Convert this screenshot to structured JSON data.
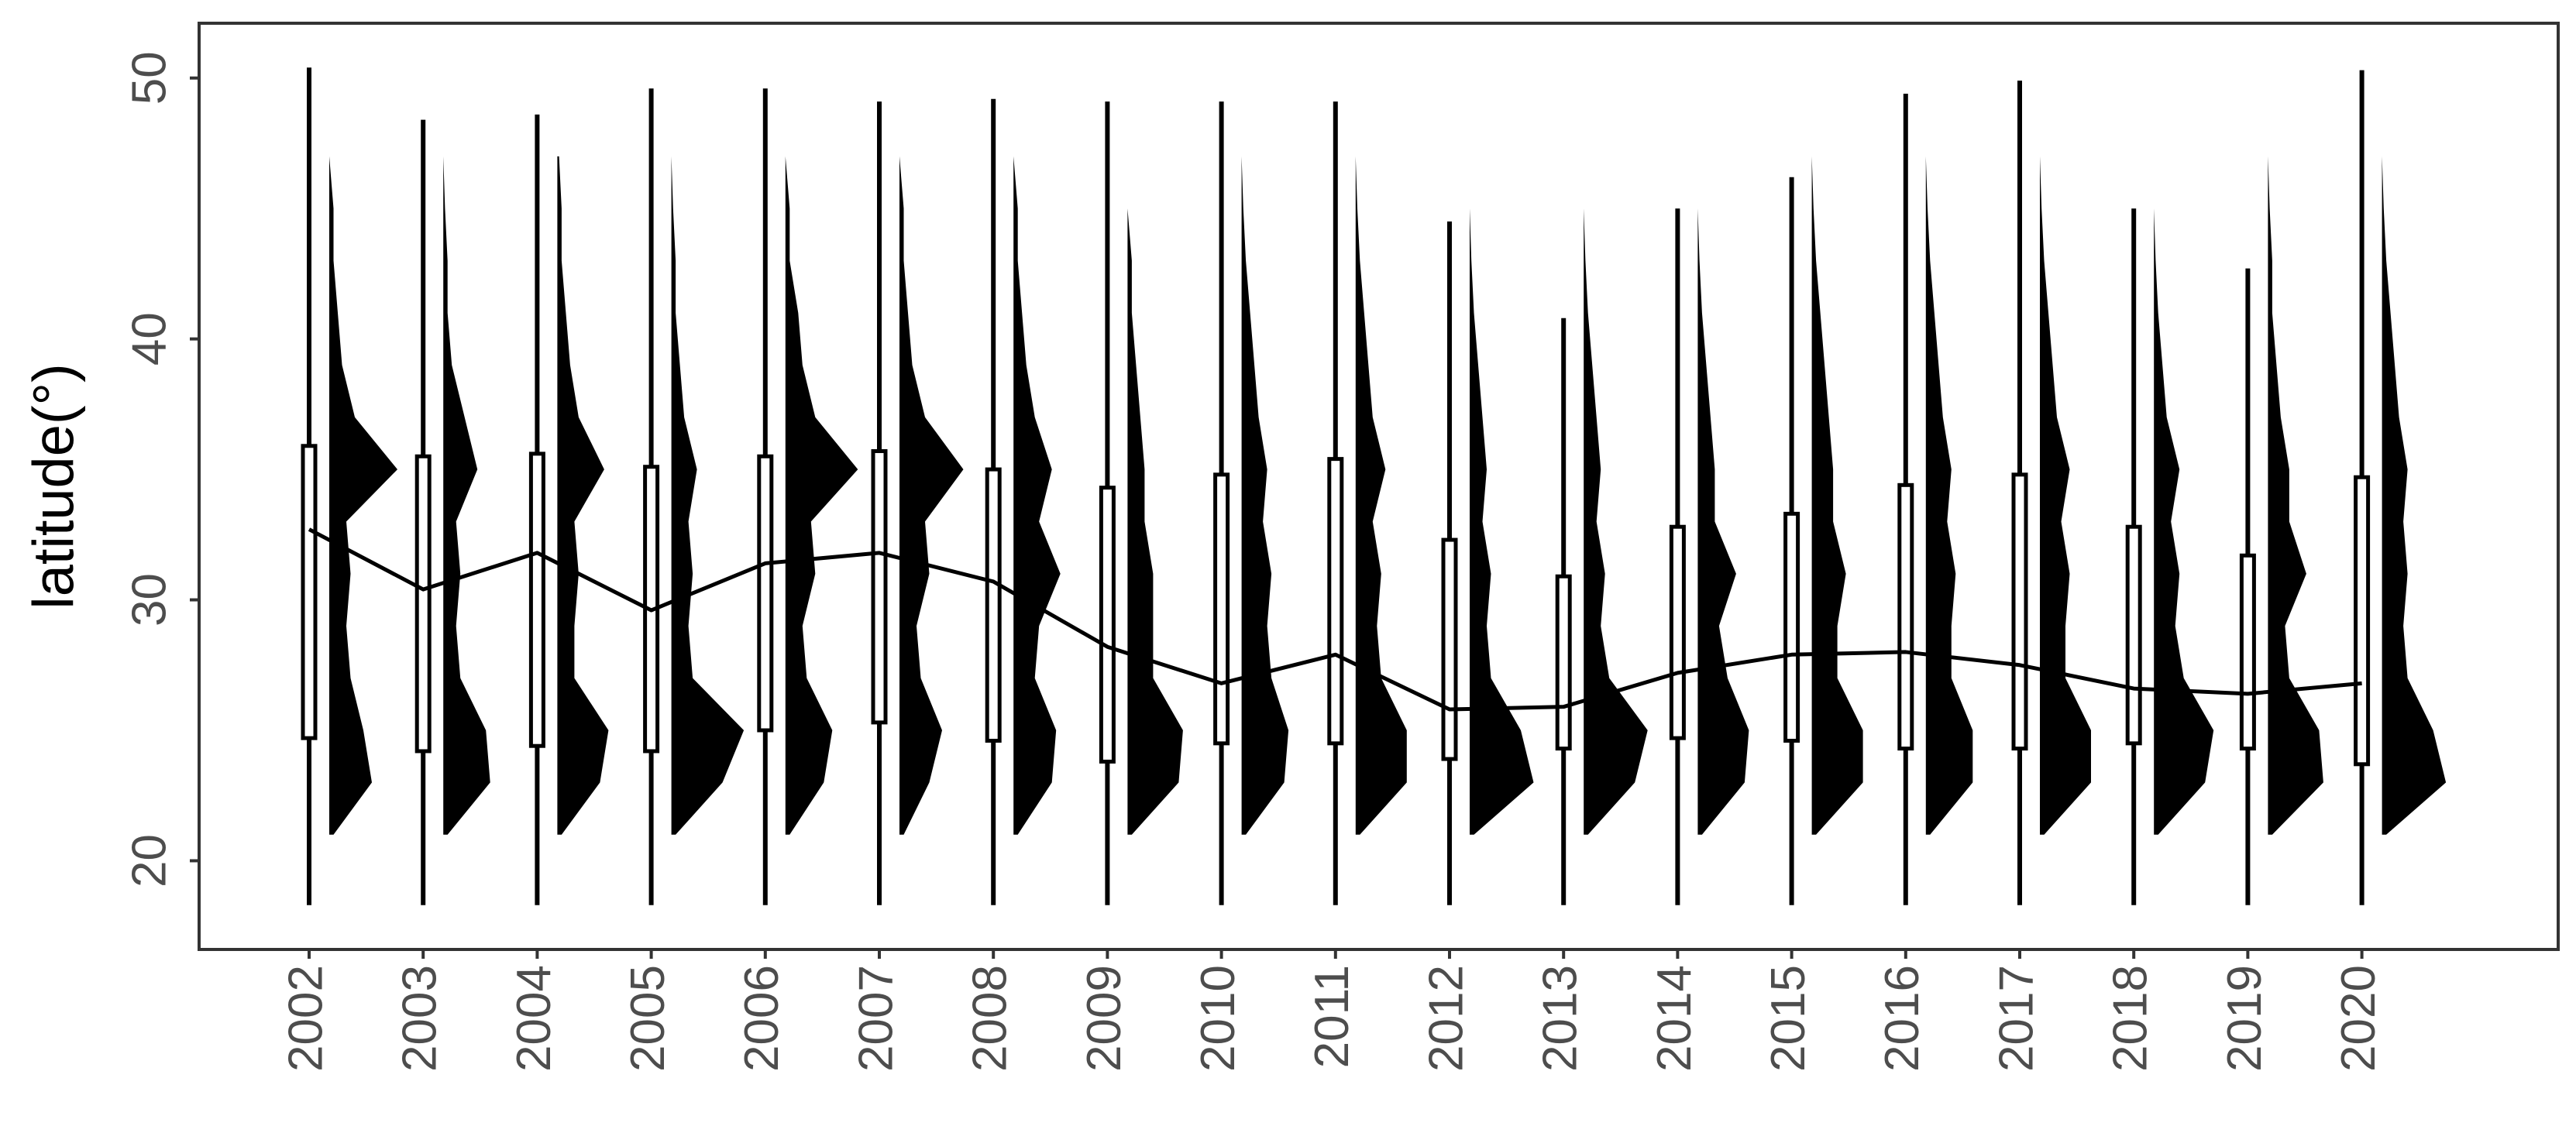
{
  "chart_data": {
    "type": "box",
    "ylabel": "latitude(°)",
    "categories": [
      "2002",
      "2003",
      "2004",
      "2005",
      "2006",
      "2007",
      "2008",
      "2009",
      "2010",
      "2011",
      "2012",
      "2013",
      "2014",
      "2015",
      "2016",
      "2017",
      "2018",
      "2019",
      "2020"
    ],
    "whisker_low": [
      18.3,
      18.3,
      18.3,
      18.3,
      18.3,
      18.3,
      18.3,
      18.3,
      18.3,
      18.3,
      18.3,
      18.3,
      18.3,
      18.3,
      18.3,
      18.3,
      18.3,
      18.3,
      18.3
    ],
    "q1": [
      24.7,
      24.2,
      24.4,
      24.2,
      25.0,
      25.3,
      24.6,
      23.8,
      24.5,
      24.5,
      23.9,
      24.3,
      24.7,
      24.6,
      24.3,
      24.3,
      24.5,
      24.3,
      23.7
    ],
    "q3": [
      35.9,
      35.5,
      35.6,
      35.1,
      35.5,
      35.7,
      35.0,
      34.3,
      34.8,
      35.4,
      32.3,
      30.9,
      32.8,
      33.3,
      34.4,
      34.8,
      32.8,
      31.7,
      34.7
    ],
    "whisker_high": [
      50.4,
      48.4,
      48.6,
      49.6,
      49.6,
      49.1,
      49.2,
      49.1,
      49.1,
      49.1,
      44.5,
      40.8,
      45.0,
      46.2,
      49.4,
      49.9,
      45.0,
      42.7,
      50.3
    ],
    "line": [
      32.7,
      30.4,
      31.8,
      29.6,
      31.4,
      31.8,
      30.7,
      28.2,
      26.8,
      27.9,
      25.8,
      25.9,
      27.2,
      27.9,
      28.0,
      27.5,
      26.6,
      26.4,
      26.8
    ],
    "density_lat": [
      21,
      23,
      25,
      27,
      29,
      31,
      33,
      35,
      37,
      39,
      41,
      43,
      45,
      47
    ],
    "density": [
      [
        0.05,
        0.5,
        0.4,
        0.25,
        0.2,
        0.25,
        0.2,
        0.8,
        0.3,
        0.15,
        0.1,
        0.05,
        0.05,
        0
      ],
      [
        0.05,
        0.55,
        0.5,
        0.2,
        0.15,
        0.2,
        0.15,
        0.4,
        0.25,
        0.1,
        0.05,
        0.05,
        0.02,
        0
      ],
      [
        0.05,
        0.5,
        0.6,
        0.2,
        0.2,
        0.25,
        0.2,
        0.55,
        0.25,
        0.15,
        0.1,
        0.05,
        0.05,
        0.02
      ],
      [
        0.05,
        0.6,
        0.85,
        0.25,
        0.2,
        0.25,
        0.2,
        0.3,
        0.15,
        0.1,
        0.05,
        0.05,
        0.02,
        0
      ],
      [
        0.05,
        0.45,
        0.55,
        0.25,
        0.2,
        0.35,
        0.3,
        0.85,
        0.35,
        0.2,
        0.15,
        0.05,
        0.05,
        0
      ],
      [
        0.05,
        0.35,
        0.5,
        0.25,
        0.2,
        0.35,
        0.3,
        0.75,
        0.3,
        0.15,
        0.1,
        0.05,
        0.05,
        0
      ],
      [
        0.05,
        0.45,
        0.5,
        0.25,
        0.3,
        0.55,
        0.3,
        0.45,
        0.25,
        0.15,
        0.1,
        0.05,
        0.05,
        0
      ],
      [
        0.05,
        0.6,
        0.65,
        0.3,
        0.3,
        0.3,
        0.2,
        0.2,
        0.15,
        0.1,
        0.05,
        0.05,
        0,
        0
      ],
      [
        0.05,
        0.5,
        0.55,
        0.35,
        0.3,
        0.35,
        0.25,
        0.3,
        0.2,
        0.15,
        0.1,
        0.05,
        0.02,
        0
      ],
      [
        0.05,
        0.6,
        0.6,
        0.3,
        0.25,
        0.3,
        0.2,
        0.35,
        0.2,
        0.15,
        0.1,
        0.05,
        0.02,
        0
      ],
      [
        0.05,
        0.75,
        0.6,
        0.25,
        0.2,
        0.25,
        0.15,
        0.2,
        0.15,
        0.1,
        0.05,
        0.02,
        0,
        0
      ],
      [
        0.05,
        0.6,
        0.75,
        0.3,
        0.2,
        0.25,
        0.15,
        0.2,
        0.15,
        0.1,
        0.05,
        0.02,
        0,
        0
      ],
      [
        0.05,
        0.55,
        0.6,
        0.35,
        0.25,
        0.45,
        0.2,
        0.2,
        0.15,
        0.1,
        0.05,
        0.02,
        0,
        0
      ],
      [
        0.05,
        0.6,
        0.6,
        0.3,
        0.3,
        0.4,
        0.25,
        0.25,
        0.2,
        0.15,
        0.1,
        0.05,
        0.02,
        0
      ],
      [
        0.05,
        0.55,
        0.55,
        0.3,
        0.3,
        0.35,
        0.25,
        0.3,
        0.2,
        0.15,
        0.1,
        0.05,
        0.02,
        0
      ],
      [
        0.05,
        0.6,
        0.6,
        0.3,
        0.3,
        0.35,
        0.25,
        0.35,
        0.2,
        0.15,
        0.1,
        0.05,
        0.02,
        0
      ],
      [
        0.05,
        0.6,
        0.7,
        0.35,
        0.25,
        0.3,
        0.2,
        0.3,
        0.15,
        0.1,
        0.05,
        0.02,
        0,
        0
      ],
      [
        0.05,
        0.65,
        0.6,
        0.25,
        0.2,
        0.45,
        0.25,
        0.25,
        0.15,
        0.1,
        0.05,
        0.05,
        0.02,
        0
      ],
      [
        0.05,
        0.75,
        0.6,
        0.3,
        0.25,
        0.3,
        0.25,
        0.3,
        0.2,
        0.15,
        0.1,
        0.05,
        0.02,
        0
      ]
    ],
    "color": "#000000",
    "ylim": [
      16.6,
      52.1
    ],
    "yticks": [
      20,
      30,
      40,
      50
    ]
  }
}
